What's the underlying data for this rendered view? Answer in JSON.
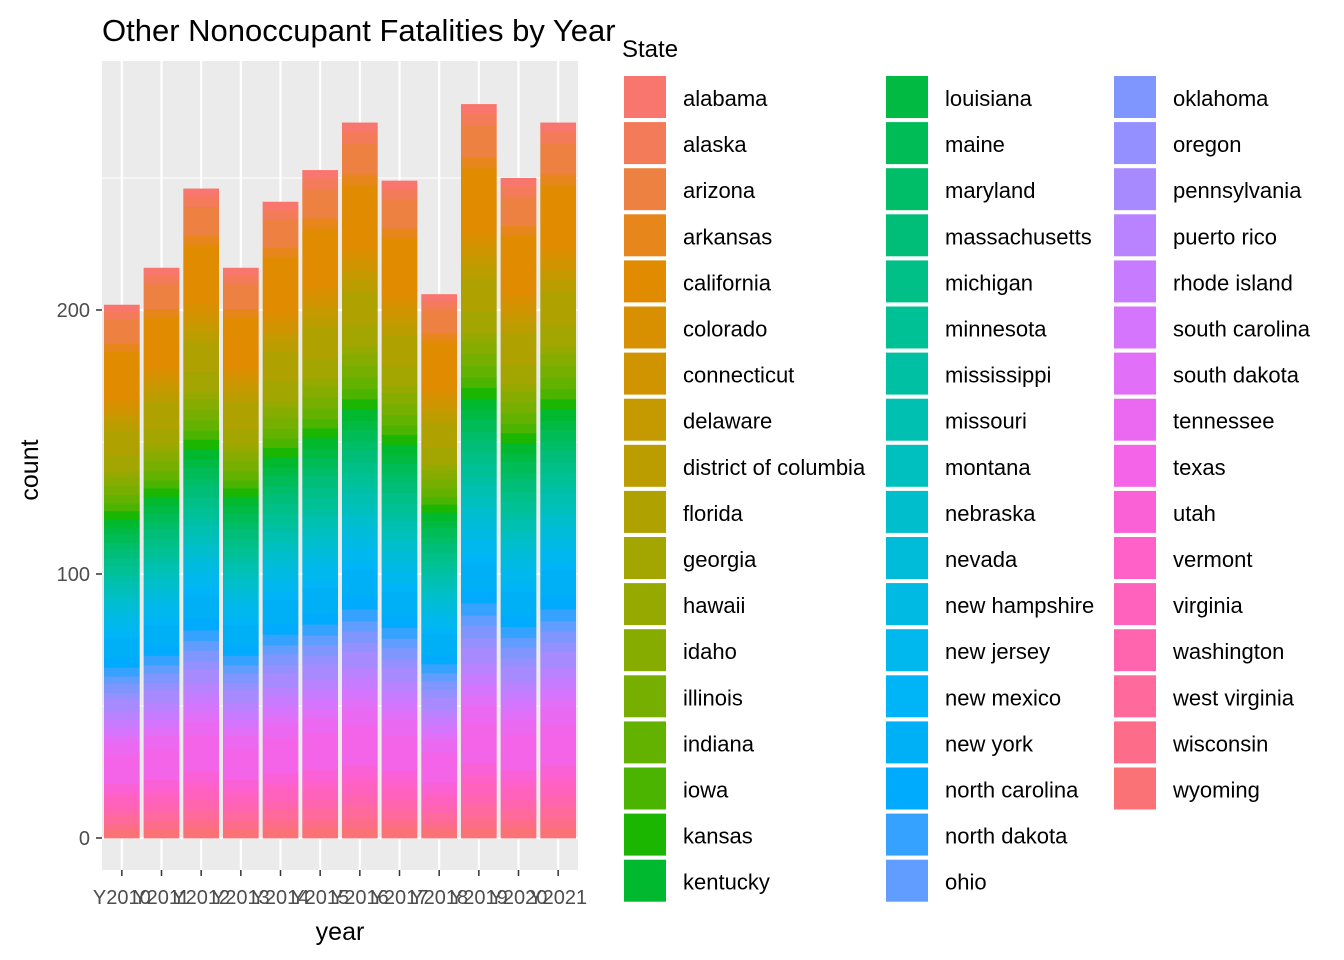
{
  "chart_data": {
    "type": "bar",
    "stacked": true,
    "title": "Other Nonoccupant Fatalities by Year",
    "xlabel": "year",
    "ylabel": "count",
    "categories": [
      "Y2010",
      "Y2011",
      "Y2012",
      "Y2013",
      "Y2014",
      "Y2015",
      "Y2016",
      "Y2017",
      "Y2018",
      "Y2019",
      "Y2020",
      "Y2021"
    ],
    "totals": [
      202,
      216,
      246,
      216,
      241,
      253,
      271,
      249,
      206,
      278,
      250,
      271
    ],
    "ylim": [
      0,
      290
    ],
    "yticks": [
      0,
      100,
      200
    ],
    "grid": true,
    "legend": {
      "title": "State",
      "position": "right",
      "columns": 3,
      "items": [
        {
          "name": "alabama",
          "color": "#F8766D"
        },
        {
          "name": "alaska",
          "color": "#F37B59"
        },
        {
          "name": "arizona",
          "color": "#ED8141"
        },
        {
          "name": "arkansas",
          "color": "#E7861B"
        },
        {
          "name": "california",
          "color": "#E08B00"
        },
        {
          "name": "colorado",
          "color": "#D89000"
        },
        {
          "name": "connecticut",
          "color": "#CF9400"
        },
        {
          "name": "delaware",
          "color": "#C59900"
        },
        {
          "name": "district of columbia",
          "color": "#BB9D00"
        },
        {
          "name": "florida",
          "color": "#AFA100"
        },
        {
          "name": "georgia",
          "color": "#A3A500"
        },
        {
          "name": "hawaii",
          "color": "#96A900"
        },
        {
          "name": "idaho",
          "color": "#87AC00"
        },
        {
          "name": "illinois",
          "color": "#77AF00"
        },
        {
          "name": "indiana",
          "color": "#64B200"
        },
        {
          "name": "iowa",
          "color": "#4BB400"
        },
        {
          "name": "kansas",
          "color": "#1BB700"
        },
        {
          "name": "kentucky",
          "color": "#00B92E"
        },
        {
          "name": "louisiana",
          "color": "#00BA42"
        },
        {
          "name": "maine",
          "color": "#00BC56"
        },
        {
          "name": "maryland",
          "color": "#00BD68"
        },
        {
          "name": "massachusetts",
          "color": "#00BE78"
        },
        {
          "name": "michigan",
          "color": "#00BF87"
        },
        {
          "name": "minnesota",
          "color": "#00C096"
        },
        {
          "name": "mississippi",
          "color": "#00C0A4"
        },
        {
          "name": "missouri",
          "color": "#00C0B2"
        },
        {
          "name": "montana",
          "color": "#00BFBF"
        },
        {
          "name": "nebraska",
          "color": "#00BECC"
        },
        {
          "name": "nevada",
          "color": "#00BCD8"
        },
        {
          "name": "new hampshire",
          "color": "#00BAE3"
        },
        {
          "name": "new jersey",
          "color": "#00B7EE"
        },
        {
          "name": "new mexico",
          "color": "#00B4F8"
        },
        {
          "name": "new york",
          "color": "#00B0F6"
        },
        {
          "name": "north carolina",
          "color": "#00ABFD"
        },
        {
          "name": "north dakota",
          "color": "#35A2FF"
        },
        {
          "name": "ohio",
          "color": "#619CFF"
        },
        {
          "name": "oklahoma",
          "color": "#7F96FF"
        },
        {
          "name": "oregon",
          "color": "#9590FF"
        },
        {
          "name": "pennsylvania",
          "color": "#A88AFF"
        },
        {
          "name": "puerto rico",
          "color": "#B983FF"
        },
        {
          "name": "rhode island",
          "color": "#C77CFF"
        },
        {
          "name": "south carolina",
          "color": "#D575FE"
        },
        {
          "name": "south dakota",
          "color": "#E16FF7"
        },
        {
          "name": "tennessee",
          "color": "#EB69F0"
        },
        {
          "name": "texas",
          "color": "#F464E8"
        },
        {
          "name": "utah",
          "color": "#FB61D7"
        },
        {
          "name": "vermont",
          "color": "#FF61C9"
        },
        {
          "name": "virginia",
          "color": "#FF62BC"
        },
        {
          "name": "washington",
          "color": "#FF65AE"
        },
        {
          "name": "west virginia",
          "color": "#FF699C"
        },
        {
          "name": "wisconsin",
          "color": "#FD6D89"
        },
        {
          "name": "wyoming",
          "color": "#FA7276"
        }
      ]
    },
    "colors": {
      "panel_background": "#EBEBEB",
      "grid_major": "#FFFFFF",
      "tick_text": "#4D4D4D"
    }
  }
}
